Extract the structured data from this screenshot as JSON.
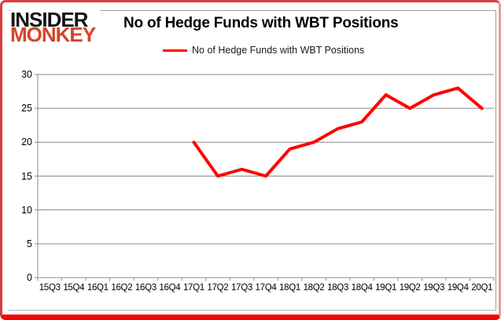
{
  "logo": {
    "line1": "INSIDER",
    "line2": "MONKEY"
  },
  "header": {
    "title": "No of Hedge Funds with WBT Positions"
  },
  "legend": {
    "label": "No of Hedge Funds with WBT Positions"
  },
  "colors": {
    "series_line": "#ff0000",
    "grid_line": "#8c8c8c",
    "axis_line": "#8c8c8c",
    "frame_red": "#e23b3b",
    "logo_black": "#141414",
    "logo_red": "#d5442c",
    "text": "#000000"
  },
  "chart_data": {
    "type": "line",
    "title": "No of Hedge Funds with WBT Positions",
    "categories": [
      "15Q3",
      "15Q4",
      "16Q1",
      "16Q2",
      "16Q3",
      "16Q4",
      "17Q1",
      "17Q2",
      "17Q3",
      "17Q4",
      "18Q1",
      "18Q2",
      "18Q3",
      "18Q4",
      "19Q1",
      "19Q2",
      "19Q3",
      "19Q4",
      "20Q1"
    ],
    "series": [
      {
        "name": "No of Hedge Funds with WBT Positions",
        "color": "#ff0000",
        "values": [
          null,
          null,
          null,
          null,
          null,
          null,
          20,
          15,
          16,
          15,
          19,
          20,
          22,
          23,
          27,
          25,
          27,
          28,
          25
        ]
      }
    ],
    "ylim": [
      0,
      30
    ],
    "yticks": [
      0,
      5,
      10,
      15,
      20,
      25,
      30
    ],
    "xlabel": "",
    "ylabel": "",
    "grid": true,
    "legend_position": "top"
  }
}
